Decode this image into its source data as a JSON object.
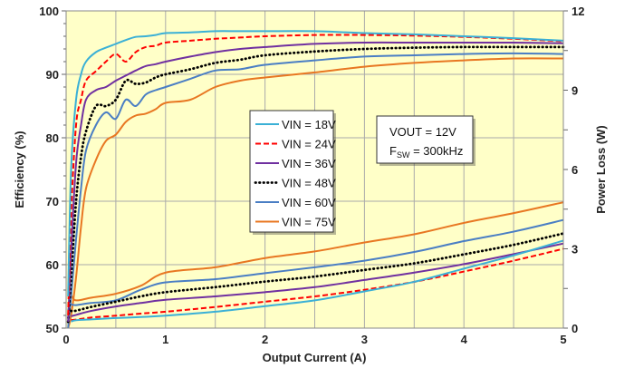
{
  "chart_data": {
    "type": "line",
    "xlabel": "Output Current (A)",
    "ylabel": "Efficiency (%)",
    "y2label": "Power Loss (W)",
    "xlim": [
      0,
      5
    ],
    "ylim": [
      50,
      100
    ],
    "y2lim": [
      0,
      12
    ],
    "xticks": [
      "0",
      "1",
      "2",
      "3",
      "4",
      "5"
    ],
    "yticks": [
      "50",
      "60",
      "70",
      "80",
      "90",
      "100"
    ],
    "y2ticks": [
      "0",
      "3",
      "6",
      "9",
      "12"
    ],
    "grid": true,
    "background": "#FFFFC8",
    "legend_position": "center-left",
    "annotation": {
      "line1": "VOUT = 12V",
      "line2_main": "F",
      "line2_sub": "SW",
      "line2_rest": " = 300kHz"
    },
    "efficiency_x": [
      0.02,
      0.05,
      0.1,
      0.15,
      0.2,
      0.3,
      0.4,
      0.5,
      0.6,
      0.7,
      0.8,
      0.9,
      1.0,
      1.25,
      1.5,
      1.75,
      2,
      2.5,
      3,
      3.5,
      4,
      4.5,
      5
    ],
    "loss_x": [
      0.05,
      0.1,
      0.25,
      0.5,
      0.75,
      1,
      1.5,
      2,
      2.5,
      3,
      3.5,
      4,
      4.5,
      5
    ],
    "series": [
      {
        "name": "VIN = 18V",
        "color": "#3BB0D6",
        "style": "solid",
        "efficiency": [
          55,
          75,
          86,
          90,
          92,
          93.5,
          94.2,
          94.8,
          95.4,
          95.9,
          96,
          96.2,
          96.5,
          96.6,
          96.8,
          96.8,
          96.8,
          96.8,
          96.5,
          96.3,
          96,
          95.7,
          95.3
        ],
        "loss": [
          0.25,
          0.3,
          0.33,
          0.38,
          0.42,
          0.47,
          0.62,
          0.83,
          1.05,
          1.39,
          1.75,
          2.25,
          2.75,
          3.31
        ]
      },
      {
        "name": "VIN = 24V",
        "color": "#FF0000",
        "style": "dashed",
        "efficiency": [
          52,
          68,
          82,
          86,
          89,
          90.5,
          92,
          93.2,
          92,
          93.5,
          94.3,
          94.5,
          95,
          95.3,
          95.6,
          95.8,
          96,
          96.2,
          96.2,
          96.1,
          95.9,
          95.6,
          95.2
        ],
        "loss": [
          0.3,
          0.32,
          0.4,
          0.47,
          0.55,
          0.62,
          0.8,
          1.0,
          1.2,
          1.45,
          1.75,
          2.14,
          2.55,
          3.0
        ]
      },
      {
        "name": "VIN = 36V",
        "color": "#7030A0",
        "style": "solid",
        "efficiency": [
          51,
          62,
          76,
          82,
          86,
          87.5,
          88,
          89,
          89.8,
          90.6,
          91.3,
          91.6,
          92,
          92.8,
          93.5,
          94,
          94.3,
          94.8,
          95,
          95,
          95,
          95,
          94.9
        ],
        "loss": [
          0.45,
          0.5,
          0.65,
          0.82,
          0.95,
          1.07,
          1.2,
          1.36,
          1.55,
          1.82,
          2.1,
          2.42,
          2.8,
          3.2
        ]
      },
      {
        "name": "VIN = 48V",
        "color": "#000000",
        "style": "dotted",
        "efficiency": [
          51,
          58,
          70,
          77,
          81,
          85,
          85,
          86,
          89,
          88.5,
          88.7,
          89.5,
          90,
          90.8,
          91.8,
          92.3,
          93,
          93.6,
          94,
          94.2,
          94.3,
          94.3,
          94.3
        ],
        "loss": [
          0.65,
          0.66,
          0.8,
          1.0,
          1.2,
          1.36,
          1.55,
          1.76,
          1.95,
          2.2,
          2.45,
          2.79,
          3.15,
          3.58
        ]
      },
      {
        "name": "VIN = 60V",
        "color": "#4A7EC4",
        "style": "solid",
        "efficiency": [
          50,
          55,
          64,
          72,
          78,
          82,
          84,
          83,
          86,
          85,
          86.8,
          87.5,
          88,
          89.3,
          90.6,
          90.8,
          91.5,
          92.2,
          92.8,
          93,
          93.2,
          93.3,
          93.2
        ],
        "loss": [
          0.9,
          0.87,
          0.95,
          1.05,
          1.45,
          1.73,
          1.85,
          2.08,
          2.3,
          2.55,
          2.88,
          3.29,
          3.65,
          4.09
        ]
      },
      {
        "name": "VIN = 75V",
        "color": "#E87722",
        "style": "solid",
        "efficiency": [
          50,
          52,
          58,
          66,
          72,
          76.5,
          79.5,
          80.5,
          82.5,
          83.5,
          83.8,
          84.5,
          85.5,
          86,
          88,
          89,
          89.5,
          90.3,
          91.2,
          91.8,
          92.2,
          92.5,
          92.5
        ],
        "loss": [
          1.25,
          1.05,
          1.15,
          1.3,
          1.6,
          2.1,
          2.3,
          2.65,
          2.9,
          3.24,
          3.55,
          3.98,
          4.35,
          4.76
        ]
      }
    ]
  }
}
